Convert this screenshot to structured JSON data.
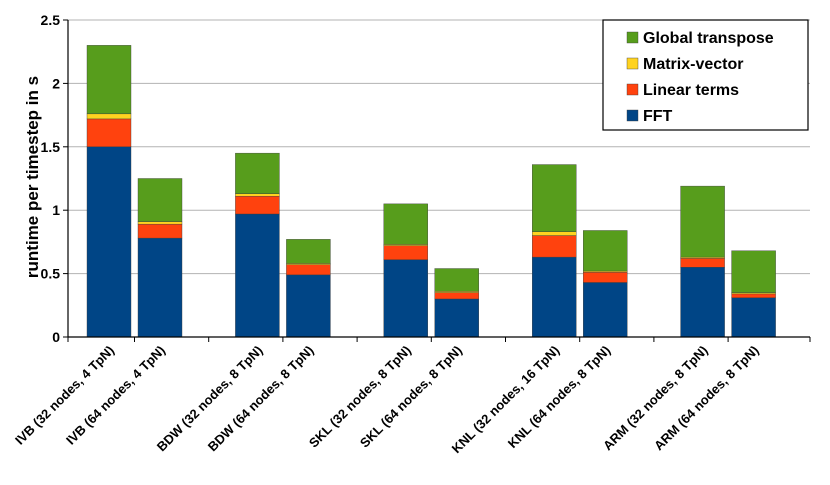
{
  "chart_data": {
    "type": "bar",
    "stacked": true,
    "title": "",
    "xlabel": "",
    "ylabel": "runtime per timestep in s",
    "ylim": [
      0,
      2.5
    ],
    "yticks": [
      "0",
      "0.5",
      "1",
      "1.5",
      "2",
      "2.5"
    ],
    "ytick_values": [
      0,
      0.5,
      1,
      1.5,
      2,
      2.5
    ],
    "grid": true,
    "legend_position": "top-right",
    "categories": [
      "IVB (32 nodes, 4 TpN)",
      "IVB (64 nodes, 4 TpN)",
      "BDW (32 nodes, 8 TpN)",
      "BDW (64 nodes, 8 TpN)",
      "SKL (32 nodes, 8 TpN)",
      "SKL (64 nodes, 8 TpN)",
      "KNL (32 nodes, 16 TpN)",
      "KNL (64 nodes, 8 TpN)",
      "ARM (32 nodes, 8 TpN)",
      "ARM (64 nodes, 8 TpN)"
    ],
    "series": [
      {
        "name": "FFT",
        "color": "#004586",
        "values": [
          1.5,
          0.78,
          0.97,
          0.49,
          0.61,
          0.3,
          0.63,
          0.43,
          0.55,
          0.31
        ]
      },
      {
        "name": "Linear terms",
        "color": "#ff420e",
        "values": [
          0.22,
          0.11,
          0.14,
          0.08,
          0.11,
          0.05,
          0.17,
          0.08,
          0.07,
          0.03
        ]
      },
      {
        "name": "Matrix-vector",
        "color": "#ffd320",
        "values": [
          0.04,
          0.02,
          0.02,
          0.01,
          0.01,
          0.01,
          0.03,
          0.01,
          0.01,
          0.01
        ]
      },
      {
        "name": "Global transpose",
        "color": "#579d1c",
        "values": [
          0.54,
          0.34,
          0.32,
          0.19,
          0.32,
          0.18,
          0.53,
          0.32,
          0.56,
          0.33
        ]
      }
    ],
    "legend_order": [
      "Global transpose",
      "Matrix-vector",
      "Linear terms",
      "FFT"
    ]
  }
}
